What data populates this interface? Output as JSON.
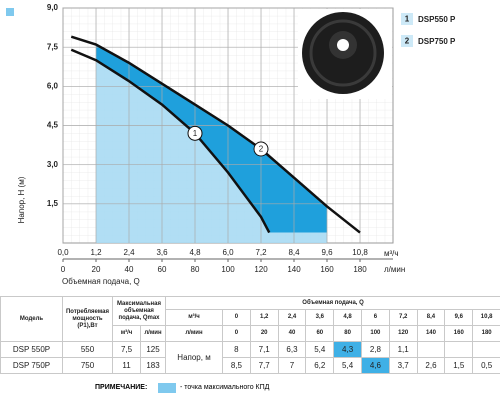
{
  "chart_data": {
    "type": "line",
    "y_label": "Напор, H (м)",
    "x_label": "Объемная подача, Q",
    "x_unit": "м³/ч",
    "x2_unit": "л/мин",
    "xlim": [
      0,
      12
    ],
    "xticks": [
      {
        "value": 0,
        "label": "0,0"
      },
      {
        "value": 1.2,
        "label": "1,2"
      },
      {
        "value": 2.4,
        "label": "2,4"
      },
      {
        "value": 3.6,
        "label": "3,6"
      },
      {
        "value": 4.8,
        "label": "4,8"
      },
      {
        "value": 6,
        "label": "6,0"
      },
      {
        "value": 7.2,
        "label": "7,2"
      },
      {
        "value": 8.4,
        "label": "8,4"
      },
      {
        "value": 9.6,
        "label": "9,6"
      },
      {
        "value": 10.8,
        "label": "10,8"
      }
    ],
    "x2lim": [
      0,
      200
    ],
    "x2ticks": [
      0,
      20,
      40,
      60,
      80,
      100,
      120,
      140,
      160,
      180
    ],
    "ylim": [
      0,
      9
    ],
    "yticks": [
      {
        "value": 1.5,
        "label": "1,5"
      },
      {
        "value": 3,
        "label": "3,0"
      },
      {
        "value": 4.5,
        "label": "4,5"
      },
      {
        "value": 6,
        "label": "6,0"
      },
      {
        "value": 7.5,
        "label": "7,5"
      },
      {
        "value": 9,
        "label": "9,0"
      }
    ],
    "grid": true,
    "shade_xlim": [
      1.2,
      9.6
    ],
    "legend": "upper right",
    "series": [
      {
        "name": "DSP550 P",
        "label": "1",
        "color": "#111111",
        "x": [
          0.3,
          1.2,
          2.4,
          3.6,
          4.8,
          6.0,
          7.2,
          7.5
        ],
        "values": [
          7.4,
          7.0,
          6.2,
          5.3,
          4.2,
          2.7,
          1.0,
          0.4
        ]
      },
      {
        "name": "DSP750 P",
        "label": "2",
        "color": "#111111",
        "x": [
          0.3,
          1.2,
          2.4,
          3.6,
          4.8,
          6.0,
          7.2,
          8.4,
          9.6,
          10.8
        ],
        "values": [
          7.9,
          7.6,
          6.9,
          6.1,
          5.3,
          4.5,
          3.6,
          2.5,
          1.4,
          0.4
        ]
      }
    ]
  },
  "table": {
    "col_model": "Модель",
    "col_power": "Потребляемая мощность (P1),Вт",
    "col_qmax": "Максимальная объемная подача, Qmax",
    "col_q": "Объемная подача, Q",
    "unit_m3": "м³/ч",
    "unit_lmin": "л/мин",
    "head_label": "Напор, м",
    "q_m3": [
      "0",
      "1,2",
      "2,4",
      "3,6",
      "4,8",
      "6",
      "7,2",
      "8,4",
      "9,6",
      "10,8"
    ],
    "q_lmin": [
      "0",
      "20",
      "40",
      "60",
      "80",
      "100",
      "120",
      "140",
      "160",
      "180"
    ],
    "rows": [
      {
        "model": "DSP 550P",
        "power": "550",
        "qmax_m3": "7,5",
        "qmax_lmin": "125",
        "head": [
          "8",
          "7,1",
          "6,3",
          "5,4",
          "4,3",
          "2,8",
          "1,1",
          null,
          null,
          null
        ],
        "best": 4
      },
      {
        "model": "DSP 750P",
        "power": "750",
        "qmax_m3": "11",
        "qmax_lmin": "183",
        "head": [
          "8,5",
          "7,7",
          "7",
          "6,2",
          "5,4",
          "4,6",
          "3,7",
          "2,6",
          "1,5",
          "0,5"
        ],
        "best": 5
      }
    ]
  },
  "note": {
    "title": "ПРИМЕЧАНИЕ:",
    "text": "- точка максимального КПД"
  }
}
